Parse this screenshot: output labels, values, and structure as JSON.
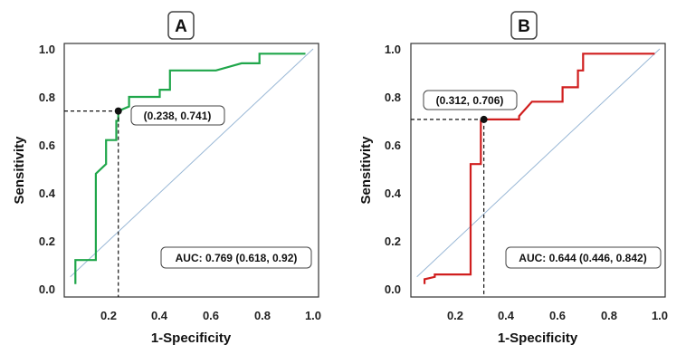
{
  "chart_data": [
    {
      "type": "line",
      "panel_label": "A",
      "xlabel": "1-Specificity",
      "ylabel": "Sensitivity",
      "xlim": [
        0.05,
        1.0
      ],
      "ylim": [
        0.0,
        1.0
      ],
      "x_ticks": [
        "0.2",
        "0.4",
        "0.6",
        "0.8",
        "1.0"
      ],
      "y_ticks": [
        "0.0",
        "0.2",
        "0.4",
        "0.6",
        "0.8",
        "1.0"
      ],
      "curve_color": "#1fa64a",
      "reference_color": "#9ab8d6",
      "series": [
        {
          "x": [
            0.07,
            0.07,
            0.15,
            0.15,
            0.19,
            0.19,
            0.23,
            0.23,
            0.238,
            0.238,
            0.28,
            0.28,
            0.4,
            0.4,
            0.44,
            0.44,
            0.62,
            0.62,
            0.72,
            0.72,
            0.79,
            0.79,
            0.97
          ],
          "y": [
            0.02,
            0.12,
            0.12,
            0.48,
            0.52,
            0.62,
            0.62,
            0.7,
            0.7,
            0.741,
            0.76,
            0.8,
            0.8,
            0.83,
            0.83,
            0.91,
            0.91,
            0.91,
            0.94,
            0.94,
            0.94,
            0.98,
            0.98
          ]
        }
      ],
      "point": {
        "x": 0.238,
        "y": 0.741
      },
      "point_label": "(0.238, 0.741)",
      "auc_label": "AUC: 0.769 (0.618, 0.92)"
    },
    {
      "type": "line",
      "panel_label": "B",
      "xlabel": "1-Specificity",
      "ylabel": "Sensitivity",
      "xlim": [
        0.05,
        1.0
      ],
      "ylim": [
        0.0,
        1.0
      ],
      "x_ticks": [
        "0.2",
        "0.4",
        "0.6",
        "0.8",
        "1.0"
      ],
      "y_ticks": [
        "0.0",
        "0.2",
        "0.4",
        "0.6",
        "0.8",
        "1.0"
      ],
      "curve_color": "#d01e1e",
      "reference_color": "#9ab8d6",
      "series": [
        {
          "x": [
            0.08,
            0.08,
            0.12,
            0.12,
            0.26,
            0.26,
            0.3,
            0.3,
            0.312,
            0.312,
            0.45,
            0.45,
            0.5,
            0.5,
            0.62,
            0.62,
            0.68,
            0.68,
            0.7,
            0.7,
            0.98
          ],
          "y": [
            0.02,
            0.04,
            0.05,
            0.06,
            0.06,
            0.52,
            0.52,
            0.7,
            0.7,
            0.706,
            0.706,
            0.72,
            0.78,
            0.78,
            0.78,
            0.84,
            0.84,
            0.91,
            0.91,
            0.98,
            0.98
          ]
        }
      ],
      "point": {
        "x": 0.312,
        "y": 0.706
      },
      "point_label": "(0.312, 0.706)",
      "auc_label": "AUC: 0.644 (0.446, 0.842)"
    }
  ]
}
